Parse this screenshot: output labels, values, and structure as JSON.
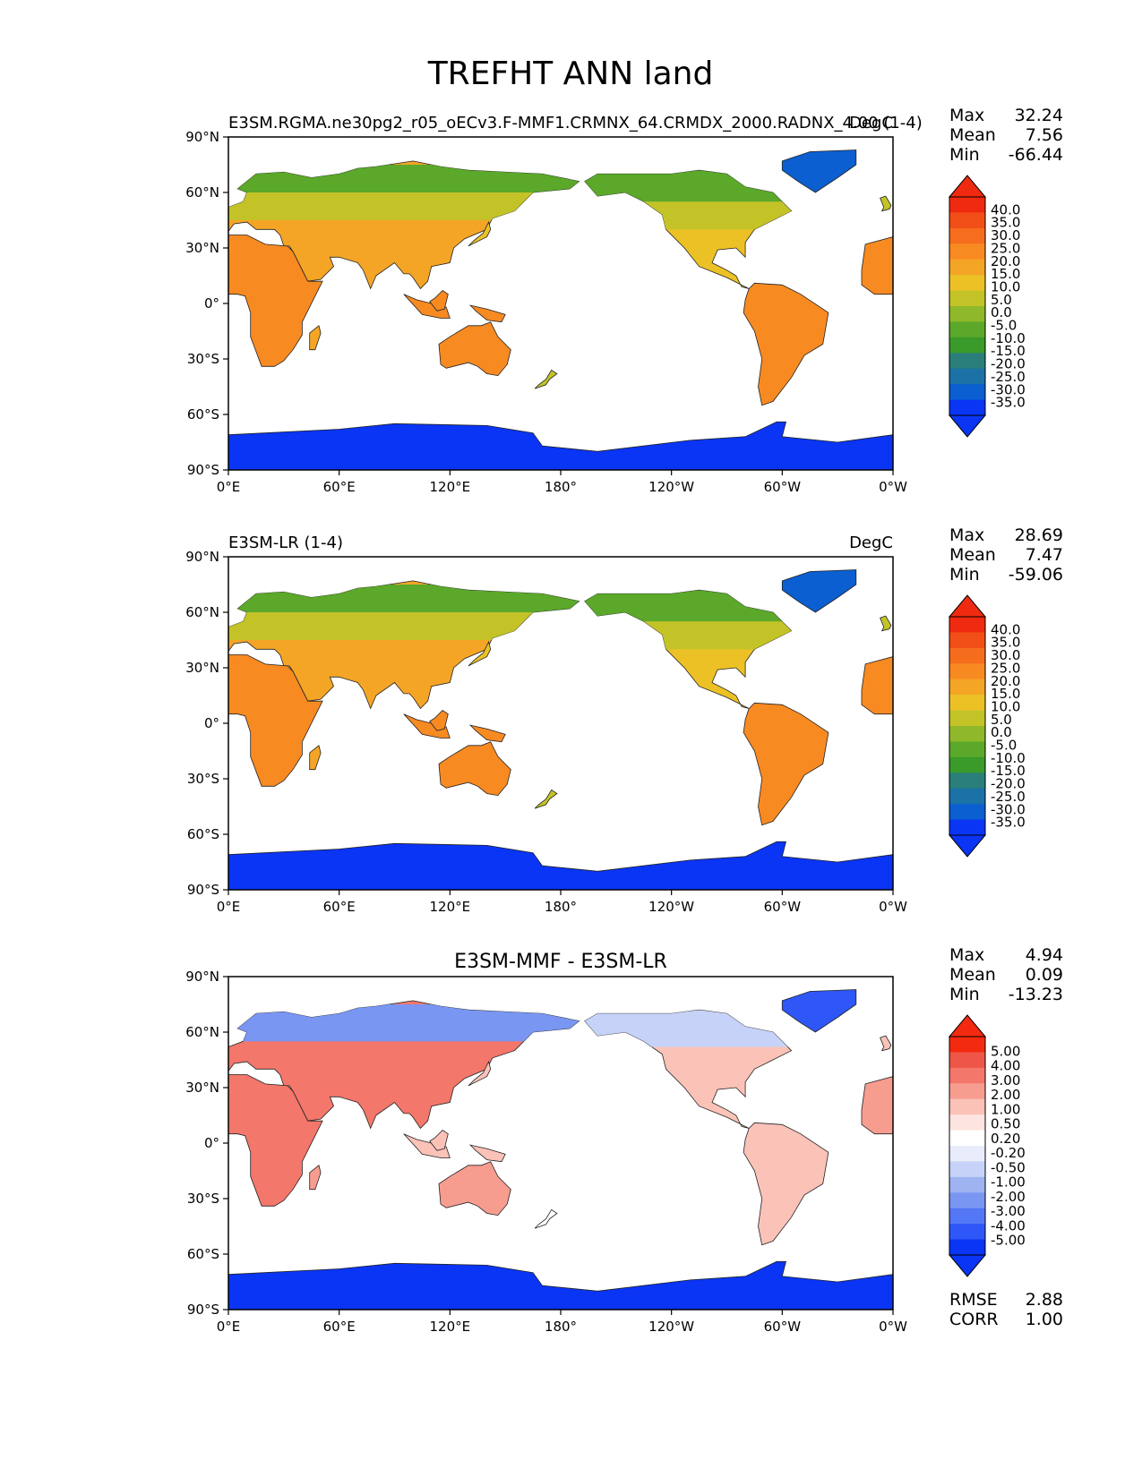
{
  "figure": {
    "title": "TREFHT ANN land"
  },
  "axes": {
    "lat_ticks": [
      "90°N",
      "60°N",
      "30°N",
      "0°",
      "30°S",
      "60°S",
      "90°S"
    ],
    "lon_ticks": [
      "0°E",
      "60°E",
      "120°E",
      "180°",
      "120°W",
      "60°W",
      "0°W"
    ]
  },
  "colors": {
    "land_white": "#ffffff",
    "abs_scale": [
      "#0a35f5",
      "#0b5fd0",
      "#1a72a6",
      "#2a7f7a",
      "#3a9a2a",
      "#5ba82a",
      "#8fb92b",
      "#c3c328",
      "#ecc126",
      "#f5a526",
      "#f88a22",
      "#f66d1e",
      "#f24e18",
      "#ef2a10"
    ],
    "diff_scale": [
      "#0a35f5",
      "#2f57f7",
      "#5477f5",
      "#7a96f3",
      "#9fb3f1",
      "#c6d2f7",
      "#e8ecfb",
      "#ffffff",
      "#fde4e0",
      "#fbc2b8",
      "#f79d8f",
      "#f3776a",
      "#ee5648",
      "#f42a10"
    ]
  },
  "stats_labels": {
    "max": "Max",
    "mean": "Mean",
    "min": "Min",
    "rmse": "RMSE",
    "corr": "CORR"
  },
  "panels": [
    {
      "left_title": "E3SM.RGMA.ne30pg2_r05_oECv3.F-MMF1.CRMNX_64.CRMDX_2000.RADNX_4.00 (1-4)",
      "center_title": "",
      "units": "DegC",
      "stats": {
        "max": "32.24",
        "mean": "7.56",
        "min": "-66.44"
      },
      "colorbar_labels": [
        "40.0",
        "35.0",
        "30.0",
        "25.0",
        "20.0",
        "15.0",
        "10.0",
        "5.0",
        "0.0",
        "-5.0",
        "-10.0",
        "-15.0",
        "-20.0",
        "-25.0",
        "-30.0",
        "-35.0"
      ]
    },
    {
      "left_title": "E3SM-LR (1-4)",
      "center_title": "",
      "units": "DegC",
      "stats": {
        "max": "28.69",
        "mean": "7.47",
        "min": "-59.06"
      },
      "colorbar_labels": [
        "40.0",
        "35.0",
        "30.0",
        "25.0",
        "20.0",
        "15.0",
        "10.0",
        "5.0",
        "0.0",
        "-5.0",
        "-10.0",
        "-15.0",
        "-20.0",
        "-25.0",
        "-30.0",
        "-35.0"
      ]
    },
    {
      "left_title": "",
      "center_title": "E3SM-MMF - E3SM-LR",
      "units": "",
      "stats": {
        "max": "4.94",
        "mean": "0.09",
        "min": "-13.23"
      },
      "extra_stats": {
        "rmse": "2.88",
        "corr": "1.00"
      },
      "colorbar_labels": [
        "5.00",
        "4.00",
        "3.00",
        "2.00",
        "1.00",
        "0.50",
        "0.20",
        "-0.20",
        "-0.50",
        "-1.00",
        "-2.00",
        "-3.00",
        "-4.00",
        "-5.00"
      ]
    }
  ]
}
